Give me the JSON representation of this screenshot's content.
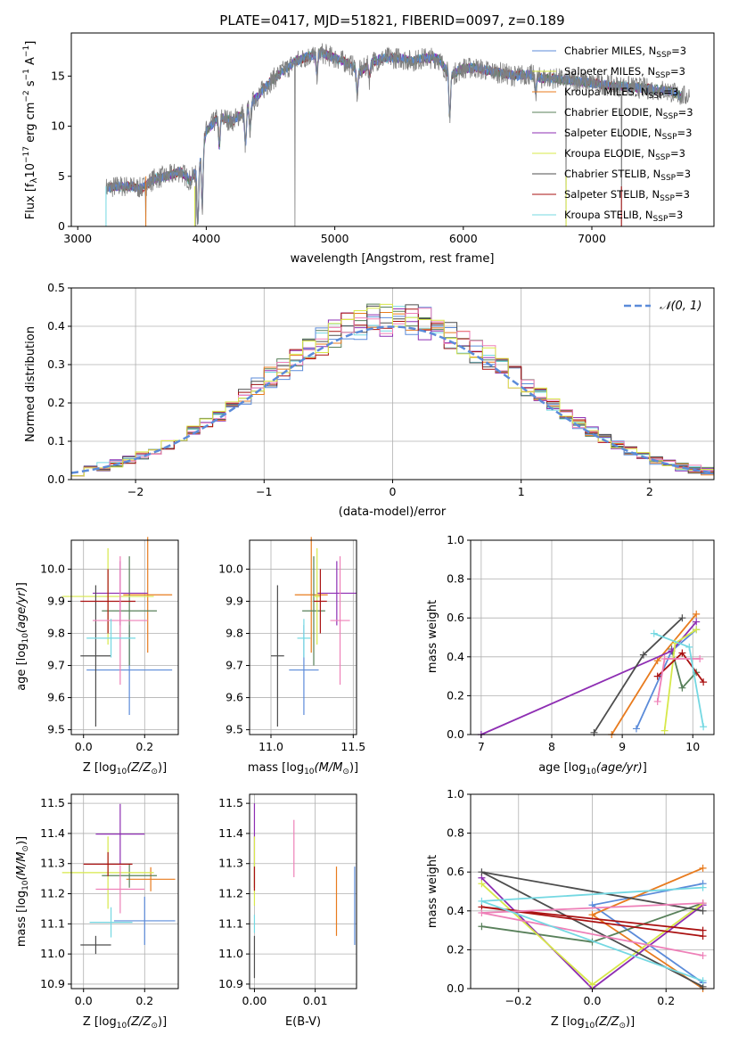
{
  "colors": [
    "#5b8bd9",
    "#e87b1e",
    "#58805a",
    "#8e2eb3",
    "#d7e84a",
    "#4d4d4d",
    "#aa1111",
    "#ee80b8",
    "#74d8e2"
  ],
  "chart_data": [
    {
      "id": "spectrum",
      "type": "line",
      "title": "PLATE=0417, MJD=51821, FIBERID=0097, z=0.189",
      "xlabel": "wavelength [Angstrom, rest frame]",
      "ylabel": "Flux [fλ10⁻¹⁷ erg cm⁻² s⁻¹ A⁻¹]",
      "xlim": [
        2950,
        7950
      ],
      "ylim": [
        0,
        19.3
      ],
      "xticks": [
        3000,
        4000,
        5000,
        6000,
        7000
      ],
      "yticks": [
        0,
        5,
        10,
        15
      ],
      "grid": false,
      "legend_position": "top-right",
      "legend": [
        "Chabrier MILES, Nₛₛₚ=3",
        "Salpeter MILES, Nₛₛₚ=3",
        "Kroupa MILES, Nₛₛₚ=3",
        "Chabrier ELODIE, Nₛₛₚ=3",
        "Salpeter ELODIE, Nₛₛₚ=3",
        "Kroupa ELODIE, Nₛₛₚ=3",
        "Chabrier STELIB, Nₛₛₚ=3",
        "Salpeter STELIB, Nₛₛₚ=3",
        "Kroupa STELIB, Nₛₛₚ=3"
      ],
      "legend_colors": [
        "#5b8bd9",
        "#d7e84a",
        "#e87b1e",
        "#58805a",
        "#8e2eb3",
        "#d7e84a",
        "#4d4d4d",
        "#aa1111",
        "#74d8e2"
      ],
      "data_color": "#808080",
      "continuum_knots": [
        [
          3220,
          3.8
        ],
        [
          3300,
          4.0
        ],
        [
          3400,
          4.0
        ],
        [
          3500,
          3.8
        ],
        [
          3600,
          4.8
        ],
        [
          3700,
          5.0
        ],
        [
          3800,
          5.5
        ],
        [
          3880,
          4.5
        ],
        [
          3950,
          6.5
        ],
        [
          4000,
          9.5
        ],
        [
          4100,
          11.0
        ],
        [
          4200,
          10.5
        ],
        [
          4300,
          11.5
        ],
        [
          4400,
          13.0
        ],
        [
          4500,
          14.5
        ],
        [
          4600,
          15.5
        ],
        [
          4700,
          16.5
        ],
        [
          4800,
          17.0
        ],
        [
          4900,
          17.3
        ],
        [
          5000,
          16.8
        ],
        [
          5100,
          16.3
        ],
        [
          5200,
          15.5
        ],
        [
          5300,
          16.5
        ],
        [
          5400,
          16.8
        ],
        [
          5500,
          16.8
        ],
        [
          5600,
          16.5
        ],
        [
          5700,
          16.8
        ],
        [
          5800,
          16.8
        ],
        [
          5900,
          15.0
        ],
        [
          6000,
          15.8
        ],
        [
          6100,
          15.8
        ],
        [
          6200,
          15.5
        ],
        [
          6300,
          15.3
        ],
        [
          6400,
          15.0
        ],
        [
          6500,
          15.2
        ],
        [
          6600,
          14.8
        ],
        [
          6700,
          14.8
        ],
        [
          6800,
          14.6
        ],
        [
          6900,
          14.5
        ],
        [
          7000,
          14.3
        ],
        [
          7200,
          14.0
        ],
        [
          7400,
          13.8
        ],
        [
          7600,
          13.5
        ],
        [
          7700,
          13.0
        ]
      ],
      "absorption_lines": [
        [
          3934,
          6.0
        ],
        [
          3969,
          5.5
        ],
        [
          4102,
          3.0
        ],
        [
          4305,
          3.5
        ],
        [
          4341,
          2.5
        ],
        [
          4861,
          2.0
        ],
        [
          5175,
          2.5
        ],
        [
          5270,
          1.5
        ],
        [
          5894,
          4.0
        ],
        [
          6563,
          1.5
        ]
      ],
      "spikes_to_zero": [
        3530,
        3920,
        4690,
        6800,
        7230
      ]
    },
    {
      "id": "residuals",
      "type": "histogram",
      "xlabel": "(data-model)/error",
      "ylabel": "Normed distribution",
      "xlim": [
        -2.5,
        2.5
      ],
      "ylim": [
        0,
        0.5
      ],
      "xticks": [
        -2,
        -1,
        0,
        1,
        2
      ],
      "yticks": [
        0.0,
        0.1,
        0.2,
        0.3,
        0.4,
        0.5
      ],
      "grid": true,
      "legend_position": "top-right",
      "legend": [
        "𝒩(0, 1)"
      ],
      "reference_curve": "normal(0,1)",
      "bin_width": 0.1
    },
    {
      "id": "age-vs-z",
      "type": "scatter",
      "xlabel": "Z [log₁₀(Z/Z⊙)]",
      "ylabel": "age  [log₁₀(age/yr)]",
      "xlim": [
        -0.04,
        0.31
      ],
      "ylim": [
        9.485,
        10.09
      ],
      "xticks": [
        "0.0",
        "0.2"
      ],
      "yticks": [
        "9.5",
        "9.6",
        "9.7",
        "9.8",
        "9.9",
        "10.0"
      ],
      "grid": true,
      "points": [
        {
          "x": 0.15,
          "xerr": 0.14,
          "y": 9.686,
          "yerr": 0.14
        },
        {
          "x": 0.21,
          "xerr": 0.08,
          "y": 9.92,
          "yerr": 0.18
        },
        {
          "x": 0.15,
          "xerr": 0.09,
          "y": 9.87,
          "yerr": 0.17
        },
        {
          "x": 0.12,
          "xerr": 0.09,
          "y": 9.925,
          "yerr": 0.1
        },
        {
          "x": 0.08,
          "xerr": 0.15,
          "y": 9.915,
          "yerr": 0.15
        },
        {
          "x": 0.04,
          "xerr": 0.05,
          "y": 9.73,
          "yerr": 0.22
        },
        {
          "x": 0.08,
          "xerr": 0.09,
          "y": 9.9,
          "yerr": 0.1
        },
        {
          "x": 0.12,
          "xerr": 0.09,
          "y": 9.84,
          "yerr": 0.2
        },
        {
          "x": 0.09,
          "xerr": 0.08,
          "y": 9.785,
          "yerr": 0.06
        }
      ]
    },
    {
      "id": "age-vs-mass",
      "type": "scatter",
      "xlabel": "mass [log₁₀(M/M⊙)]",
      "ylabel": "",
      "xlim": [
        10.87,
        11.52
      ],
      "ylim": [
        9.485,
        10.09
      ],
      "xticks": [
        "11.0",
        "11.5"
      ],
      "yticks": [
        "9.5",
        "9.6",
        "9.7",
        "9.8",
        "9.9",
        "10.0"
      ],
      "grid": true,
      "points": [
        {
          "x": 11.2,
          "xerr": 0.09,
          "y": 9.686,
          "yerr": 0.14
        },
        {
          "x": 11.245,
          "xerr": 0.1,
          "y": 9.92,
          "yerr": 0.18
        },
        {
          "x": 11.26,
          "xerr": 0.07,
          "y": 9.87,
          "yerr": 0.17
        },
        {
          "x": 11.4,
          "xerr": 0.12,
          "y": 9.925,
          "yerr": 0.1
        },
        {
          "x": 11.28,
          "xerr": 0.02,
          "y": 9.915,
          "yerr": 0.15
        },
        {
          "x": 11.04,
          "xerr": 0.04,
          "y": 9.73,
          "yerr": 0.22
        },
        {
          "x": 11.3,
          "xerr": 0.04,
          "y": 9.9,
          "yerr": 0.1
        },
        {
          "x": 11.42,
          "xerr": 0.06,
          "y": 9.84,
          "yerr": 0.2
        },
        {
          "x": 11.2,
          "xerr": 0.04,
          "y": 9.785,
          "yerr": 0.06
        }
      ]
    },
    {
      "id": "weight-vs-age",
      "type": "line",
      "xlabel": "age  [log₁₀(age/yr)]",
      "ylabel": "mass weight",
      "xlim": [
        6.85,
        10.3
      ],
      "ylim": [
        0,
        1
      ],
      "xticks": [
        "7",
        "8",
        "9",
        "10"
      ],
      "yticks": [
        "0.0",
        "0.2",
        "0.4",
        "0.6",
        "0.8",
        "1.0"
      ],
      "grid": true,
      "series": [
        {
          "x": [
            9.2,
            9.7,
            10.05
          ],
          "y": [
            0.03,
            0.43,
            0.54
          ]
        },
        {
          "x": [
            8.85,
            9.5,
            10.05
          ],
          "y": [
            0.0,
            0.38,
            0.62
          ]
        },
        {
          "x": [
            9.7,
            9.85,
            10.05
          ],
          "y": [
            0.44,
            0.24,
            0.32
          ]
        },
        {
          "x": [
            7.0,
            9.7,
            10.05
          ],
          "y": [
            0.0,
            0.43,
            0.58
          ]
        },
        {
          "x": [
            9.6,
            9.75,
            10.05
          ],
          "y": [
            0.02,
            0.47,
            0.54
          ]
        },
        {
          "x": [
            8.6,
            9.3,
            9.85
          ],
          "y": [
            0.01,
            0.41,
            0.6
          ]
        },
        {
          "x": [
            9.5,
            9.85,
            10.15
          ],
          "y": [
            0.3,
            0.42,
            0.27
          ]
        },
        {
          "x": [
            9.5,
            9.6,
            10.1
          ],
          "y": [
            0.17,
            0.39,
            0.39
          ]
        },
        {
          "x": [
            9.45,
            9.95,
            10.15
          ],
          "y": [
            0.52,
            0.45,
            0.04
          ]
        }
      ]
    },
    {
      "id": "mass-vs-z",
      "type": "scatter",
      "xlabel": "Z [log₁₀(Z/Z⊙)]",
      "ylabel": "mass [log₁₀(M/M⊙)]",
      "xlim": [
        -0.04,
        0.31
      ],
      "ylim": [
        10.885,
        11.53
      ],
      "xticks": [
        "0.0",
        "0.2"
      ],
      "yticks": [
        "10.9",
        "11.0",
        "11.1",
        "11.2",
        "11.3",
        "11.4",
        "11.5"
      ],
      "grid": true,
      "points": [
        {
          "x": 0.2,
          "xerr": 0.1,
          "y": 11.11,
          "yerr": 0.08
        },
        {
          "x": 0.22,
          "xerr": 0.08,
          "y": 11.248,
          "yerr": 0.04
        },
        {
          "x": 0.15,
          "xerr": 0.09,
          "y": 11.26,
          "yerr": 0.04
        },
        {
          "x": 0.12,
          "xerr": 0.08,
          "y": 11.398,
          "yerr": 0.1
        },
        {
          "x": 0.08,
          "xerr": 0.15,
          "y": 11.27,
          "yerr": 0.12
        },
        {
          "x": 0.04,
          "xerr": 0.05,
          "y": 11.03,
          "yerr": 0.03
        },
        {
          "x": 0.08,
          "xerr": 0.08,
          "y": 11.298,
          "yerr": 0.04
        },
        {
          "x": 0.12,
          "xerr": 0.08,
          "y": 11.215,
          "yerr": 0.08
        },
        {
          "x": 0.09,
          "xerr": 0.07,
          "y": 11.105,
          "yerr": 0.05
        }
      ]
    },
    {
      "id": "mass-vs-ebv",
      "type": "scatter",
      "xlabel": "E(B-V)",
      "ylabel": "",
      "xlim": [
        -0.0008,
        0.0168
      ],
      "ylim": [
        10.885,
        11.53
      ],
      "xticks": [
        "0.00",
        "0.01"
      ],
      "yticks": [
        "10.9",
        "11.0",
        "11.1",
        "11.2",
        "11.3",
        "11.4",
        "11.5"
      ],
      "grid": true,
      "points": [
        {
          "x": 0.0165,
          "xerr": 0,
          "y": 11.16,
          "yerr": 0.13
        },
        {
          "x": 0.0135,
          "xerr": 0,
          "y": 11.175,
          "yerr": 0.115
        },
        {
          "x": 0.0,
          "xerr": 0,
          "y": 11.26,
          "yerr": 0.04
        },
        {
          "x": 0.0,
          "xerr": 0,
          "y": 11.4,
          "yerr": 0.1
        },
        {
          "x": 0.0,
          "xerr": 0,
          "y": 11.275,
          "yerr": 0.115
        },
        {
          "x": 0.0,
          "xerr": 0,
          "y": 10.99,
          "yerr": 0.07
        },
        {
          "x": 0.0,
          "xerr": 0,
          "y": 11.25,
          "yerr": 0.04
        },
        {
          "x": 0.0065,
          "xerr": 0,
          "y": 11.35,
          "yerr": 0.095
        },
        {
          "x": 0.0,
          "xerr": 0,
          "y": 11.1,
          "yerr": 0.03
        }
      ]
    },
    {
      "id": "weight-vs-z",
      "type": "line",
      "xlabel": "Z [log₁₀(Z/Z⊙)]",
      "ylabel": "mass weight",
      "xlim": [
        -0.33,
        0.33
      ],
      "ylim": [
        0,
        1
      ],
      "xticks": [
        "−0.2",
        "0.0",
        "0.2"
      ],
      "yticks": [
        "0.0",
        "0.2",
        "0.4",
        "0.6",
        "0.8",
        "1.0"
      ],
      "grid": true,
      "series": [
        {
          "x": [
            0.3,
            0.0,
            0.3
          ],
          "y": [
            0.03,
            0.43,
            0.54
          ]
        },
        {
          "x": [
            0.3,
            0.0,
            0.3
          ],
          "y": [
            0.0,
            0.38,
            0.62
          ]
        },
        {
          "x": [
            -0.3,
            0.0,
            0.3
          ],
          "y": [
            0.32,
            0.24,
            0.44
          ]
        },
        {
          "x": [
            -0.3,
            0.0,
            0.3
          ],
          "y": [
            0.57,
            0.0,
            0.43
          ]
        },
        {
          "x": [
            -0.3,
            0.0,
            0.3
          ],
          "y": [
            0.54,
            0.02,
            0.44
          ]
        },
        {
          "x": [
            0.3,
            -0.3,
            0.3
          ],
          "y": [
            0.01,
            0.6,
            0.4
          ]
        },
        {
          "x": [
            0.3,
            -0.3,
            0.3
          ],
          "y": [
            0.27,
            0.42,
            0.3
          ]
        },
        {
          "x": [
            0.3,
            -0.3,
            0.3
          ],
          "y": [
            0.17,
            0.39,
            0.44
          ]
        },
        {
          "x": [
            0.3,
            -0.3,
            0.3
          ],
          "y": [
            0.04,
            0.45,
            0.52
          ]
        }
      ]
    }
  ]
}
